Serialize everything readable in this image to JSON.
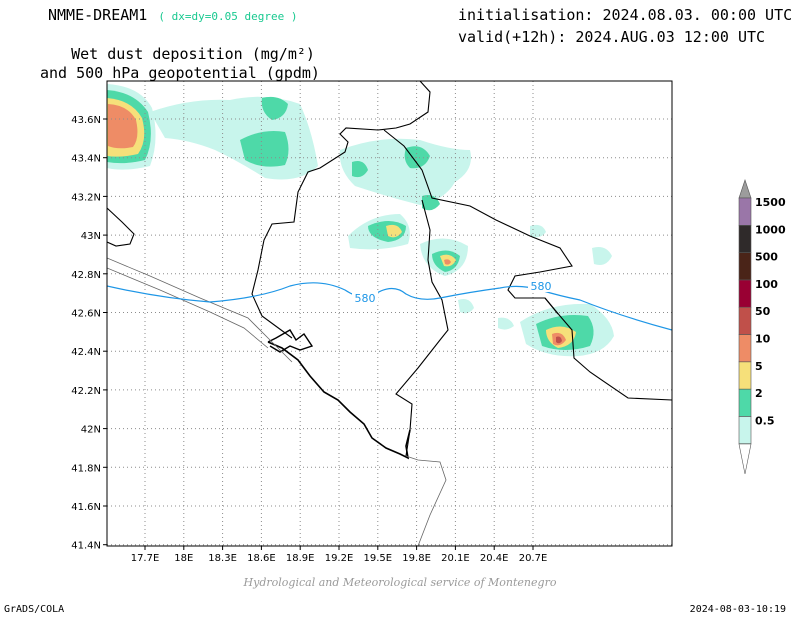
{
  "header": {
    "model": "NMME-DREAM1",
    "resolution": "( dx=dy=0.05 degree )",
    "variable_line1": "Wet dust deposition (mg/m²)",
    "variable_line2": "and 500 hPa geopotential (gpdm)",
    "initialisation": "initialisation: 2024.08.03. 00:00 UTC",
    "valid": "valid(+12h): 2024.AUG.03 12:00 UTC"
  },
  "map": {
    "lon_labels": [
      "17.7E",
      "18E",
      "18.3E",
      "18.6E",
      "18.9E",
      "19.2E",
      "19.5E",
      "19.8E",
      "20.1E",
      "20.4E",
      "20.7E"
    ],
    "lat_labels": [
      "43.6N",
      "43.4N",
      "43.2N",
      "43N",
      "42.8N",
      "42.6N",
      "42.4N",
      "42.2N",
      "42N",
      "41.8N",
      "41.6N",
      "41.4N"
    ],
    "contour_label": "580",
    "colors": {
      "c0_5": "#c8f5ec",
      "c2": "#4ed9a8",
      "c5": "#f6e07a",
      "c10": "#ee8c66",
      "c50": "#c0504a",
      "c100": "#990033",
      "c500": "#4a2418",
      "c1000": "#2f2a2a",
      "c1500": "#9a76a8",
      "contour": "#1e96e6"
    }
  },
  "legend": {
    "labels": [
      "0.5",
      "2",
      "5",
      "10",
      "50",
      "100",
      "500",
      "1000",
      "1500"
    ]
  },
  "footer": {
    "credit": "Hydrological and Meteorological service of Montenegro",
    "software": "GrADS/COLA",
    "timestamp": "2024-08-03-10:19"
  }
}
